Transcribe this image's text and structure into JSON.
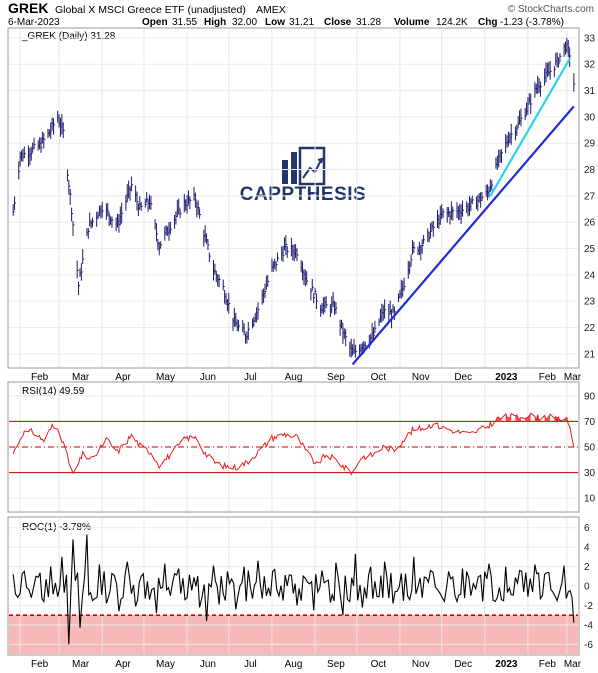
{
  "header": {
    "symbol": "GREK",
    "description": "Global X MSCI Greece ETF (unadjusted)",
    "exchange": "AMEX",
    "copyright": "© StockCharts.com",
    "date": "6-Mar-2023",
    "open_label": "Open",
    "open": "31.55",
    "high_label": "High",
    "high": "32.00",
    "low_label": "Low",
    "low": "31.21",
    "close_label": "Close",
    "close": "31.28",
    "volume": "124.2K",
    "chg_label": "Chg",
    "chg": "-1.23 (-3.78%)"
  },
  "watermark": {
    "brand": "CAPPTHESIS",
    "icon": "bar-chart-up-arrow-logo"
  },
  "colors": {
    "price_bars": "#1a1a6e",
    "trendline_long": "#1f2bd6",
    "trendline_short": "#27d3f0",
    "rsi_line": "#ee1c1c",
    "roc_line": "#000000",
    "roc_band": "#f7b8b8",
    "roc_dashed": "#d40000"
  },
  "chart_data": [
    {
      "type": "ohlc",
      "name": "price",
      "legend": "_GREK (Daily) 31.28",
      "x_labels": [
        "Feb",
        "Mar",
        "Apr",
        "May",
        "Jun",
        "Jul",
        "Aug",
        "Sep",
        "Oct",
        "Nov",
        "Dec",
        "2023",
        "Feb",
        "Mar"
      ],
      "y_ticks": [
        21,
        22,
        23,
        24,
        25,
        26,
        27,
        28,
        29,
        30,
        31,
        32,
        33
      ],
      "ylim": [
        20.5,
        33.3
      ],
      "points": [
        [
          "2022-01-27",
          26.4
        ],
        [
          "2022-02-01",
          28.5
        ],
        [
          "2022-02-08",
          28.7
        ],
        [
          "2022-02-15",
          28.9
        ],
        [
          "2022-02-22",
          29.4
        ],
        [
          "2022-02-28",
          30.0
        ],
        [
          "2022-03-04",
          29.4
        ],
        [
          "2022-03-10",
          26.5
        ],
        [
          "2022-03-15",
          23.6
        ],
        [
          "2022-03-22",
          25.8
        ],
        [
          "2022-04-01",
          26.6
        ],
        [
          "2022-04-12",
          25.9
        ],
        [
          "2022-04-22",
          27.4
        ],
        [
          "2022-04-28",
          26.5
        ],
        [
          "2022-05-05",
          26.8
        ],
        [
          "2022-05-12",
          25.1
        ],
        [
          "2022-05-20",
          25.9
        ],
        [
          "2022-05-30",
          26.7
        ],
        [
          "2022-06-07",
          26.9
        ],
        [
          "2022-06-13",
          25.6
        ],
        [
          "2022-06-20",
          24.2
        ],
        [
          "2022-06-27",
          23.5
        ],
        [
          "2022-07-05",
          22.2
        ],
        [
          "2022-07-13",
          21.7
        ],
        [
          "2022-07-22",
          22.7
        ],
        [
          "2022-08-01",
          24.2
        ],
        [
          "2022-08-10",
          25.0
        ],
        [
          "2022-08-19",
          24.9
        ],
        [
          "2022-08-26",
          23.8
        ],
        [
          "2022-09-05",
          22.8
        ],
        [
          "2022-09-15",
          22.8
        ],
        [
          "2022-09-22",
          21.7
        ],
        [
          "2022-09-28",
          21.0
        ],
        [
          "2022-10-04",
          21.3
        ],
        [
          "2022-10-13",
          21.7
        ],
        [
          "2022-10-20",
          22.6
        ],
        [
          "2022-10-28",
          22.5
        ],
        [
          "2022-11-03",
          23.5
        ],
        [
          "2022-11-10",
          24.9
        ],
        [
          "2022-11-18",
          25.2
        ],
        [
          "2022-11-25",
          25.8
        ],
        [
          "2022-12-02",
          26.3
        ],
        [
          "2022-12-12",
          26.4
        ],
        [
          "2022-12-21",
          26.6
        ],
        [
          "2023-01-03",
          27.1
        ],
        [
          "2023-01-10",
          28.2
        ],
        [
          "2023-01-18",
          29.2
        ],
        [
          "2023-01-25",
          29.7
        ],
        [
          "2023-02-01",
          30.4
        ],
        [
          "2023-02-08",
          31.2
        ],
        [
          "2023-02-15",
          31.6
        ],
        [
          "2023-02-22",
          32.1
        ],
        [
          "2023-02-28",
          32.7
        ],
        [
          "2023-03-03",
          32.4
        ],
        [
          "2023-03-06",
          31.28
        ]
      ],
      "trendlines": [
        {
          "from": [
            "2022-09-28",
            20.6
          ],
          "to": [
            "2023-03-06",
            30.4
          ]
        },
        {
          "from": [
            "2023-01-05",
            27.0
          ],
          "to": [
            "2023-03-03",
            32.2
          ]
        }
      ]
    },
    {
      "type": "line",
      "name": "rsi",
      "legend": "RSI(14) 49.59",
      "y_ticks": [
        10,
        30,
        50,
        70,
        90
      ],
      "ylim": [
        0,
        100
      ],
      "overbought": 70,
      "oversold": 30,
      "midline": 50,
      "points": [
        [
          "2022-01-27",
          45
        ],
        [
          "2022-02-03",
          61
        ],
        [
          "2022-02-10",
          62
        ],
        [
          "2022-02-18",
          55
        ],
        [
          "2022-02-24",
          66
        ],
        [
          "2022-03-01",
          63
        ],
        [
          "2022-03-07",
          42
        ],
        [
          "2022-03-11",
          28
        ],
        [
          "2022-03-18",
          44
        ],
        [
          "2022-03-25",
          40
        ],
        [
          "2022-04-04",
          56
        ],
        [
          "2022-04-12",
          46
        ],
        [
          "2022-04-22",
          59
        ],
        [
          "2022-04-29",
          50
        ],
        [
          "2022-05-06",
          46
        ],
        [
          "2022-05-12",
          36
        ],
        [
          "2022-05-20",
          44
        ],
        [
          "2022-05-31",
          57
        ],
        [
          "2022-06-08",
          57
        ],
        [
          "2022-06-14",
          45
        ],
        [
          "2022-06-21",
          38
        ],
        [
          "2022-06-28",
          35
        ],
        [
          "2022-07-06",
          34
        ],
        [
          "2022-07-14",
          38
        ],
        [
          "2022-07-22",
          46
        ],
        [
          "2022-08-01",
          57
        ],
        [
          "2022-08-10",
          60
        ],
        [
          "2022-08-19",
          58
        ],
        [
          "2022-08-26",
          46
        ],
        [
          "2022-09-02",
          36
        ],
        [
          "2022-09-09",
          44
        ],
        [
          "2022-09-16",
          40
        ],
        [
          "2022-09-23",
          33
        ],
        [
          "2022-09-28",
          30
        ],
        [
          "2022-10-04",
          42
        ],
        [
          "2022-10-13",
          44
        ],
        [
          "2022-10-20",
          50
        ],
        [
          "2022-10-28",
          48
        ],
        [
          "2022-11-03",
          55
        ],
        [
          "2022-11-10",
          63
        ],
        [
          "2022-11-18",
          65
        ],
        [
          "2022-11-25",
          68
        ],
        [
          "2022-12-02",
          65
        ],
        [
          "2022-12-12",
          62
        ],
        [
          "2022-12-21",
          60
        ],
        [
          "2023-01-03",
          66
        ],
        [
          "2023-01-10",
          72
        ],
        [
          "2023-01-18",
          74
        ],
        [
          "2023-01-25",
          73
        ],
        [
          "2023-02-01",
          75
        ],
        [
          "2023-02-08",
          73
        ],
        [
          "2023-02-15",
          74
        ],
        [
          "2023-02-22",
          71
        ],
        [
          "2023-02-28",
          73
        ],
        [
          "2023-03-03",
          66
        ],
        [
          "2023-03-06",
          49.59
        ]
      ]
    },
    {
      "type": "line",
      "name": "roc",
      "legend": "ROC(1) -3.78%",
      "x_labels": [
        "Feb",
        "Mar",
        "Apr",
        "May",
        "Jun",
        "Jul",
        "Aug",
        "Sep",
        "Oct",
        "Nov",
        "Dec",
        "2023",
        "Feb",
        "Mar"
      ],
      "y_ticks": [
        -6,
        -4,
        -2,
        0,
        2,
        4,
        6
      ],
      "ylim": [
        -7,
        7
      ],
      "threshold": -3,
      "points": [
        [
          "2022-01-27",
          1.2
        ],
        [
          "2022-02-01",
          -0.8
        ],
        [
          "2022-02-04",
          1.5
        ],
        [
          "2022-02-09",
          -1.2
        ],
        [
          "2022-02-14",
          0.9
        ],
        [
          "2022-02-18",
          -1.6
        ],
        [
          "2022-02-23",
          2.0
        ],
        [
          "2022-02-28",
          -1.1
        ],
        [
          "2022-03-03",
          3.0
        ],
        [
          "2022-03-08",
          -6.0
        ],
        [
          "2022-03-11",
          4.8
        ],
        [
          "2022-03-16",
          -4.3
        ],
        [
          "2022-03-21",
          5.3
        ],
        [
          "2022-03-25",
          -1.5
        ],
        [
          "2022-03-30",
          2.2
        ],
        [
          "2022-04-04",
          -1.8
        ],
        [
          "2022-04-08",
          1.3
        ],
        [
          "2022-04-13",
          -2.6
        ],
        [
          "2022-04-19",
          2.5
        ],
        [
          "2022-04-25",
          -2.1
        ],
        [
          "2022-04-29",
          1.0
        ],
        [
          "2022-05-05",
          -1.4
        ],
        [
          "2022-05-10",
          -2.8
        ],
        [
          "2022-05-16",
          2.3
        ],
        [
          "2022-05-20",
          -1.0
        ],
        [
          "2022-05-26",
          1.8
        ],
        [
          "2022-06-01",
          -1.2
        ],
        [
          "2022-06-06",
          0.9
        ],
        [
          "2022-06-10",
          -2.2
        ],
        [
          "2022-06-15",
          -3.6
        ],
        [
          "2022-06-20",
          2.1
        ],
        [
          "2022-06-24",
          -1.9
        ],
        [
          "2022-06-30",
          1.5
        ],
        [
          "2022-07-06",
          -2.4
        ],
        [
          "2022-07-12",
          2.0
        ],
        [
          "2022-07-18",
          -1.3
        ],
        [
          "2022-07-22",
          2.6
        ],
        [
          "2022-07-28",
          -1.0
        ],
        [
          "2022-08-03",
          1.7
        ],
        [
          "2022-08-09",
          -1.5
        ],
        [
          "2022-08-15",
          1.1
        ],
        [
          "2022-08-19",
          -2.0
        ],
        [
          "2022-08-25",
          0.8
        ],
        [
          "2022-08-31",
          -2.5
        ],
        [
          "2022-09-06",
          1.6
        ],
        [
          "2022-09-12",
          -1.7
        ],
        [
          "2022-09-16",
          2.4
        ],
        [
          "2022-09-21",
          -3.0
        ],
        [
          "2022-09-26",
          -1.6
        ],
        [
          "2022-09-30",
          3.3
        ],
        [
          "2022-10-05",
          -2.2
        ],
        [
          "2022-10-11",
          2.0
        ],
        [
          "2022-10-17",
          -1.1
        ],
        [
          "2022-10-21",
          2.5
        ],
        [
          "2022-10-27",
          -1.8
        ],
        [
          "2022-11-02",
          1.3
        ],
        [
          "2022-11-08",
          -1.4
        ],
        [
          "2022-11-11",
          3.0
        ],
        [
          "2022-11-17",
          -1.2
        ],
        [
          "2022-11-23",
          1.6
        ],
        [
          "2022-11-30",
          -0.8
        ],
        [
          "2022-12-06",
          1.5
        ],
        [
          "2022-12-12",
          -1.6
        ],
        [
          "2022-12-16",
          1.8
        ],
        [
          "2022-12-22",
          -1.0
        ],
        [
          "2022-12-29",
          1.1
        ],
        [
          "2023-01-04",
          2.3
        ],
        [
          "2023-01-10",
          -1.2
        ],
        [
          "2023-01-16",
          2.0
        ],
        [
          "2023-01-20",
          -0.9
        ],
        [
          "2023-01-26",
          1.6
        ],
        [
          "2023-02-01",
          -1.1
        ],
        [
          "2023-02-06",
          2.2
        ],
        [
          "2023-02-10",
          -1.3
        ],
        [
          "2023-02-16",
          1.4
        ],
        [
          "2023-02-22",
          -1.5
        ],
        [
          "2023-02-27",
          2.1
        ],
        [
          "2023-03-02",
          -0.6
        ],
        [
          "2023-03-06",
          -3.78
        ]
      ]
    }
  ]
}
